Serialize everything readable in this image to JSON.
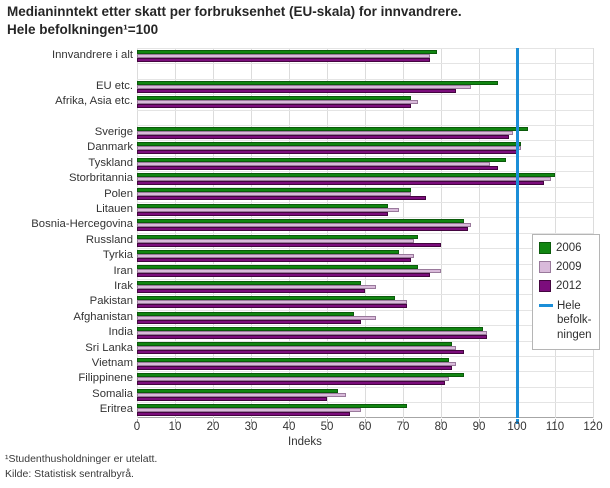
{
  "title": {
    "line1": "Medianinntekt etter skatt per forbruksenhet (EU-skala) for innvandrere.",
    "line2": "Hele befolkningen¹=100"
  },
  "legend": {
    "reference_text": "Hele\nbefolk-\nningen"
  },
  "footnotes": {
    "note1": "¹Studenthusholdninger er utelatt.",
    "note2": "Kilde: Statistisk sentralbyrå."
  },
  "chart_data": {
    "type": "bar",
    "orientation": "horizontal",
    "title": "Medianinntekt etter skatt per forbruksenhet (EU-skala) for innvandrere. Hele befolkningen¹=100",
    "xlabel": "Indeks",
    "xlim": [
      0,
      120
    ],
    "xticks": [
      0,
      10,
      20,
      30,
      40,
      50,
      60,
      70,
      80,
      90,
      100,
      110,
      120
    ],
    "grid": true,
    "legend_position": "inside-right",
    "categories": [
      "Innvandrere i alt",
      "EU etc.",
      "Afrika, Asia etc.",
      "Sverige",
      "Danmark",
      "Tyskland",
      "Storbritannia",
      "Polen",
      "Litauen",
      "Bosnia-Hercegovina",
      "Russland",
      "Tyrkia",
      "Iran",
      "Irak",
      "Pakistan",
      "Afghanistan",
      "India",
      "Sri Lanka",
      "Vietnam",
      "Filippinene",
      "Somalia",
      "Eritrea"
    ],
    "gaps_after_indices": [
      0,
      2
    ],
    "series": [
      {
        "name": "2006",
        "color": "#118611",
        "border": "#0b5a0b",
        "values": [
          79,
          95,
          72,
          103,
          101,
          97,
          110,
          72,
          66,
          86,
          74,
          69,
          74,
          59,
          68,
          57,
          91,
          83,
          82,
          86,
          53,
          71
        ]
      },
      {
        "name": "2009",
        "color": "#d9bada",
        "border": "#99799b",
        "values": [
          77,
          88,
          74,
          99,
          101,
          93,
          109,
          72,
          69,
          88,
          73,
          73,
          80,
          63,
          71,
          63,
          92,
          84,
          84,
          82,
          55,
          59
        ]
      },
      {
        "name": "2012",
        "color": "#7c0d7c",
        "border": "#43053f",
        "values": [
          77,
          84,
          72,
          98,
          100,
          95,
          107,
          76,
          66,
          87,
          80,
          72,
          77,
          60,
          71,
          59,
          92,
          86,
          83,
          81,
          50,
          56
        ]
      }
    ],
    "reference_line": {
      "label": "Hele befolkningen",
      "value": 100,
      "color": "#1b8ed8"
    },
    "colors": {
      "grid": "#dcdcdc",
      "axis": "#a6a6a6",
      "text": "#333333"
    }
  }
}
